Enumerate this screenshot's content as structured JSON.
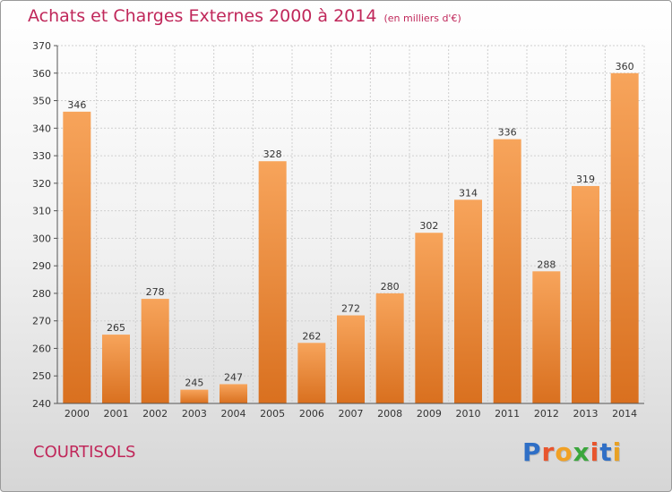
{
  "title": "Achats et Charges Externes 2000 à 2014",
  "subtitle": "(en milliers d'€)",
  "location": "COURTISOLS",
  "logo": {
    "letters": [
      "P",
      "r",
      "o",
      "x",
      "i",
      "t",
      "i"
    ],
    "colors": [
      "#2f6fc6",
      "#e8552d",
      "#f1a125",
      "#3aa63c",
      "#e8552d",
      "#2f6fc6",
      "#e8a125"
    ]
  },
  "colors": {
    "bar_top": "#f7a45b",
    "bar_bottom": "#d9701f",
    "grid": "#cfcfcf",
    "axis": "#555555",
    "label": "#333333",
    "title": "#c0275a"
  },
  "chart_data": {
    "type": "bar",
    "categories": [
      "2000",
      "2001",
      "2002",
      "2003",
      "2004",
      "2005",
      "2006",
      "2007",
      "2008",
      "2009",
      "2010",
      "2011",
      "2012",
      "2013",
      "2014"
    ],
    "values": [
      346,
      265,
      278,
      245,
      247,
      328,
      262,
      272,
      280,
      302,
      314,
      336,
      288,
      319,
      360
    ],
    "ylim": [
      240,
      370
    ],
    "yticks": [
      240,
      250,
      260,
      270,
      280,
      290,
      300,
      310,
      320,
      330,
      340,
      350,
      360,
      370
    ],
    "grid": true,
    "data_labels": true
  }
}
